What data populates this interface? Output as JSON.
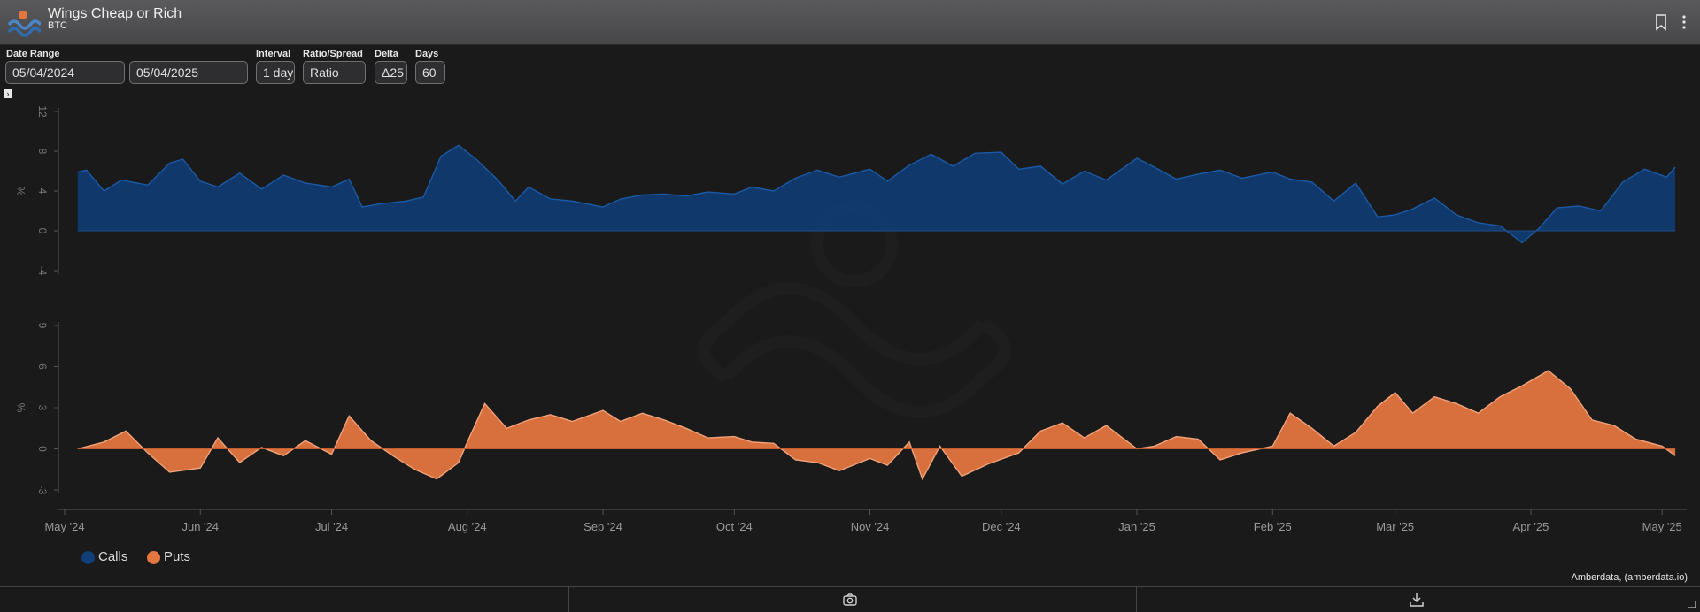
{
  "header": {
    "title": "Wings Cheap or Rich",
    "subtitle": "BTC"
  },
  "controls": {
    "date_range_label": "Date Range",
    "date_start": "05/04/2024",
    "date_end": "05/04/2025",
    "interval_label": "Interval",
    "interval_value": "1 day",
    "ratio_label": "Ratio/Spread",
    "ratio_value": "Ratio",
    "delta_label": "Delta",
    "delta_value": "Δ25",
    "days_label": "Days",
    "days_value": "60"
  },
  "legend": {
    "calls": "Calls",
    "puts": "Puts"
  },
  "credit": "Amberdata, (amberdata.io)",
  "colors": {
    "calls": "#0f3e78",
    "puts": "#e37540",
    "background": "#1a1a1b"
  },
  "icons": [
    "bookmark-icon",
    "more-vertical-icon",
    "camera-icon",
    "download-icon"
  ],
  "chart_data": [
    {
      "type": "area",
      "series": [
        {
          "name": "Calls"
        }
      ],
      "ylabel": "%",
      "yticks": [
        12,
        8,
        4,
        0,
        -4
      ],
      "ylim": [
        -4,
        12
      ],
      "points": [
        [
          "2024-05-04",
          5.9
        ],
        [
          "2024-05-06",
          6.1
        ],
        [
          "2024-05-10",
          4.0
        ],
        [
          "2024-05-14",
          5.1
        ],
        [
          "2024-05-20",
          4.6
        ],
        [
          "2024-05-25",
          6.8
        ],
        [
          "2024-05-28",
          7.2
        ],
        [
          "2024-06-01",
          5.0
        ],
        [
          "2024-06-05",
          4.4
        ],
        [
          "2024-06-10",
          5.8
        ],
        [
          "2024-06-15",
          4.2
        ],
        [
          "2024-06-20",
          5.6
        ],
        [
          "2024-06-25",
          4.8
        ],
        [
          "2024-07-01",
          4.4
        ],
        [
          "2024-07-05",
          5.2
        ],
        [
          "2024-07-08",
          2.4
        ],
        [
          "2024-07-12",
          2.7
        ],
        [
          "2024-07-18",
          3.0
        ],
        [
          "2024-07-22",
          3.4
        ],
        [
          "2024-07-26",
          7.5
        ],
        [
          "2024-07-30",
          8.6
        ],
        [
          "2024-08-03",
          7.2
        ],
        [
          "2024-08-08",
          5.1
        ],
        [
          "2024-08-12",
          3.0
        ],
        [
          "2024-08-15",
          4.4
        ],
        [
          "2024-08-20",
          3.2
        ],
        [
          "2024-08-25",
          3.0
        ],
        [
          "2024-09-01",
          2.4
        ],
        [
          "2024-09-05",
          3.2
        ],
        [
          "2024-09-10",
          3.6
        ],
        [
          "2024-09-15",
          3.7
        ],
        [
          "2024-09-20",
          3.5
        ],
        [
          "2024-09-25",
          3.9
        ],
        [
          "2024-10-01",
          3.7
        ],
        [
          "2024-10-05",
          4.4
        ],
        [
          "2024-10-10",
          4.0
        ],
        [
          "2024-10-15",
          5.3
        ],
        [
          "2024-10-20",
          6.1
        ],
        [
          "2024-10-25",
          5.4
        ],
        [
          "2024-11-01",
          6.2
        ],
        [
          "2024-11-05",
          5.0
        ],
        [
          "2024-11-10",
          6.6
        ],
        [
          "2024-11-15",
          7.7
        ],
        [
          "2024-11-20",
          6.5
        ],
        [
          "2024-11-25",
          7.8
        ],
        [
          "2024-12-01",
          7.9
        ],
        [
          "2024-12-05",
          6.2
        ],
        [
          "2024-12-10",
          6.5
        ],
        [
          "2024-12-15",
          4.7
        ],
        [
          "2024-12-20",
          6.0
        ],
        [
          "2024-12-25",
          5.1
        ],
        [
          "2025-01-01",
          7.3
        ],
        [
          "2025-01-05",
          6.4
        ],
        [
          "2025-01-10",
          5.2
        ],
        [
          "2025-01-15",
          5.7
        ],
        [
          "2025-01-20",
          6.1
        ],
        [
          "2025-01-25",
          5.3
        ],
        [
          "2025-02-01",
          5.9
        ],
        [
          "2025-02-05",
          5.2
        ],
        [
          "2025-02-10",
          4.9
        ],
        [
          "2025-02-15",
          3.0
        ],
        [
          "2025-02-20",
          4.8
        ],
        [
          "2025-02-25",
          1.4
        ],
        [
          "2025-03-01",
          1.6
        ],
        [
          "2025-03-05",
          2.2
        ],
        [
          "2025-03-10",
          3.3
        ],
        [
          "2025-03-15",
          1.6
        ],
        [
          "2025-03-20",
          0.8
        ],
        [
          "2025-03-25",
          0.5
        ],
        [
          "2025-03-30",
          -1.2
        ],
        [
          "2025-04-03",
          0.3
        ],
        [
          "2025-04-07",
          2.3
        ],
        [
          "2025-04-12",
          2.5
        ],
        [
          "2025-04-17",
          2.0
        ],
        [
          "2025-04-22",
          4.9
        ],
        [
          "2025-04-27",
          6.2
        ],
        [
          "2025-05-02",
          5.4
        ],
        [
          "2025-05-04",
          6.4
        ]
      ]
    },
    {
      "type": "area",
      "series": [
        {
          "name": "Puts"
        }
      ],
      "ylabel": "%",
      "yticks": [
        9,
        6,
        3,
        0,
        -3
      ],
      "ylim": [
        -3,
        9
      ],
      "points": [
        [
          "2024-05-04",
          0.0
        ],
        [
          "2024-05-10",
          0.5
        ],
        [
          "2024-05-15",
          1.3
        ],
        [
          "2024-05-20",
          -0.3
        ],
        [
          "2024-05-25",
          -1.7
        ],
        [
          "2024-06-01",
          -1.4
        ],
        [
          "2024-06-05",
          0.8
        ],
        [
          "2024-06-10",
          -1.0
        ],
        [
          "2024-06-15",
          0.1
        ],
        [
          "2024-06-20",
          -0.5
        ],
        [
          "2024-06-25",
          0.6
        ],
        [
          "2024-07-01",
          -0.4
        ],
        [
          "2024-07-05",
          2.4
        ],
        [
          "2024-07-10",
          0.6
        ],
        [
          "2024-07-15",
          -0.5
        ],
        [
          "2024-07-20",
          -1.5
        ],
        [
          "2024-07-25",
          -2.2
        ],
        [
          "2024-07-30",
          -1.0
        ],
        [
          "2024-08-01",
          0.5
        ],
        [
          "2024-08-05",
          3.3
        ],
        [
          "2024-08-10",
          1.5
        ],
        [
          "2024-08-15",
          2.1
        ],
        [
          "2024-08-20",
          2.5
        ],
        [
          "2024-08-25",
          2.0
        ],
        [
          "2024-09-01",
          2.8
        ],
        [
          "2024-09-05",
          2.0
        ],
        [
          "2024-09-10",
          2.6
        ],
        [
          "2024-09-15",
          2.1
        ],
        [
          "2024-09-20",
          1.5
        ],
        [
          "2024-09-25",
          0.8
        ],
        [
          "2024-10-01",
          0.9
        ],
        [
          "2024-10-05",
          0.5
        ],
        [
          "2024-10-10",
          0.4
        ],
        [
          "2024-10-15",
          -0.8
        ],
        [
          "2024-10-20",
          -1.0
        ],
        [
          "2024-10-25",
          -1.6
        ],
        [
          "2024-11-01",
          -0.7
        ],
        [
          "2024-11-05",
          -1.2
        ],
        [
          "2024-11-10",
          0.5
        ],
        [
          "2024-11-13",
          -2.2
        ],
        [
          "2024-11-17",
          0.2
        ],
        [
          "2024-11-22",
          -2.0
        ],
        [
          "2024-11-28",
          -1.1
        ],
        [
          "2024-12-05",
          -0.3
        ],
        [
          "2024-12-10",
          1.3
        ],
        [
          "2024-12-15",
          1.9
        ],
        [
          "2024-12-20",
          0.8
        ],
        [
          "2024-12-25",
          1.7
        ],
        [
          "2025-01-01",
          0.0
        ],
        [
          "2025-01-05",
          0.2
        ],
        [
          "2025-01-10",
          0.9
        ],
        [
          "2025-01-15",
          0.7
        ],
        [
          "2025-01-20",
          -0.8
        ],
        [
          "2025-01-25",
          -0.3
        ],
        [
          "2025-02-01",
          0.2
        ],
        [
          "2025-02-05",
          2.6
        ],
        [
          "2025-02-10",
          1.5
        ],
        [
          "2025-02-15",
          0.2
        ],
        [
          "2025-02-20",
          1.2
        ],
        [
          "2025-02-25",
          3.1
        ],
        [
          "2025-03-01",
          4.1
        ],
        [
          "2025-03-05",
          2.6
        ],
        [
          "2025-03-10",
          3.8
        ],
        [
          "2025-03-15",
          3.3
        ],
        [
          "2025-03-20",
          2.6
        ],
        [
          "2025-03-25",
          3.8
        ],
        [
          "2025-03-30",
          4.6
        ],
        [
          "2025-04-05",
          5.7
        ],
        [
          "2025-04-10",
          4.4
        ],
        [
          "2025-04-15",
          2.1
        ],
        [
          "2025-04-20",
          1.7
        ],
        [
          "2025-04-25",
          0.7
        ],
        [
          "2025-05-01",
          0.2
        ],
        [
          "2025-05-04",
          -0.5
        ]
      ]
    }
  ],
  "xaxis": {
    "xlim": [
      "2024-05-01",
      "2025-05-05"
    ],
    "ticks": [
      [
        "2024-05-01",
        "May '24"
      ],
      [
        "2024-06-01",
        "Jun '24"
      ],
      [
        "2024-07-01",
        "Jul '24"
      ],
      [
        "2024-08-01",
        "Aug '24"
      ],
      [
        "2024-09-01",
        "Sep '24"
      ],
      [
        "2024-10-01",
        "Oct '24"
      ],
      [
        "2024-11-01",
        "Nov '24"
      ],
      [
        "2024-12-01",
        "Dec '24"
      ],
      [
        "2025-01-01",
        "Jan '25"
      ],
      [
        "2025-02-01",
        "Feb '25"
      ],
      [
        "2025-03-01",
        "Mar '25"
      ],
      [
        "2025-04-01",
        "Apr '25"
      ],
      [
        "2025-05-01",
        "May '25"
      ]
    ]
  }
}
